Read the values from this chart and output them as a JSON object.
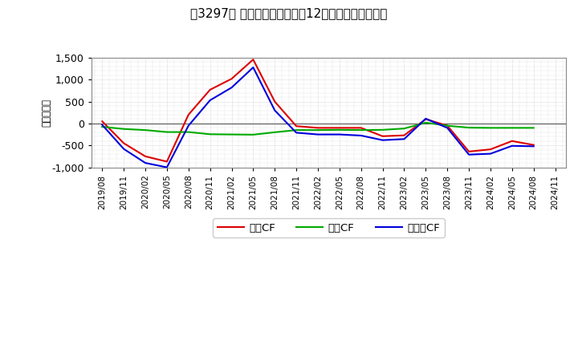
{
  "title": "［3297］ キャッシュフローの12か月移動合計の推移",
  "ylabel": "（百万円）",
  "background_color": "#ffffff",
  "plot_bg_color": "#ffffff",
  "grid_color": "#bbbbbb",
  "ylim": [
    -1000,
    1500
  ],
  "yticks": [
    -1000,
    -500,
    0,
    500,
    1000,
    1500
  ],
  "x_labels": [
    "2019/08",
    "2019/11",
    "2020/02",
    "2020/05",
    "2020/08",
    "2020/11",
    "2021/02",
    "2021/05",
    "2021/08",
    "2021/11",
    "2022/02",
    "2022/05",
    "2022/08",
    "2022/11",
    "2023/02",
    "2023/05",
    "2023/08",
    "2023/11",
    "2024/02",
    "2024/05",
    "2024/08",
    "2024/11"
  ],
  "operating_cf": [
    50,
    -450,
    -750,
    -870,
    200,
    770,
    1020,
    1460,
    500,
    -60,
    -100,
    -100,
    -100,
    -290,
    -270,
    100,
    -50,
    -640,
    -590,
    -400,
    -490,
    null
  ],
  "investing_cf": [
    -75,
    -125,
    -150,
    -195,
    -195,
    -245,
    -250,
    -255,
    -200,
    -150,
    -150,
    -145,
    -150,
    -145,
    -115,
    20,
    -50,
    -95,
    -100,
    -100,
    -100,
    null
  ],
  "free_cf": [
    -30,
    -580,
    -900,
    -1000,
    -50,
    530,
    820,
    1280,
    300,
    -210,
    -250,
    -250,
    -275,
    -380,
    -355,
    110,
    -100,
    -710,
    -690,
    -510,
    -520,
    null
  ],
  "operating_color": "#dd0000",
  "investing_color": "#00aa00",
  "free_color": "#0000dd",
  "line_width": 1.5,
  "legend_labels": [
    "営業CF",
    "投資CF",
    "フリーCF"
  ]
}
